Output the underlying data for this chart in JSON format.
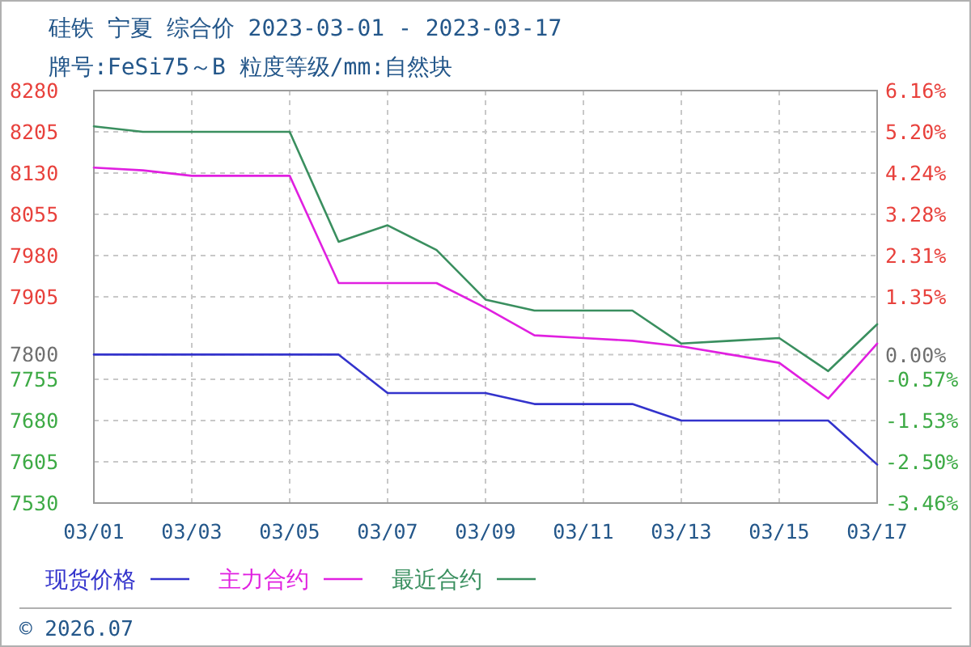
{
  "chart_data": {
    "type": "line",
    "title": "硅铁 宁夏 综合价 2023-03-01 - 2023-03-17",
    "subtitle": "牌号:FeSi75～B 粒度等级/mm:自然块",
    "x": [
      "2023-03-01",
      "2023-03-02",
      "2023-03-03",
      "2023-03-04",
      "2023-03-05",
      "2023-03-06",
      "2023-03-07",
      "2023-03-08",
      "2023-03-09",
      "2023-03-10",
      "2023-03-11",
      "2023-03-12",
      "2023-03-13",
      "2023-03-14",
      "2023-03-15",
      "2023-03-16",
      "2023-03-17"
    ],
    "series": [
      {
        "name": "现货价格",
        "color": "#3333cc",
        "values": [
          7800,
          7800,
          7800,
          7800,
          7800,
          7800,
          7730,
          7730,
          7730,
          7710,
          7710,
          7710,
          7680,
          7680,
          7680,
          7680,
          7600
        ]
      },
      {
        "name": "主力合约",
        "color": "#e020e0",
        "values": [
          8140,
          8135,
          8125,
          8125,
          8125,
          7930,
          7930,
          7930,
          7885,
          7835,
          7830,
          7825,
          7815,
          7800,
          7785,
          7720,
          7820
        ]
      },
      {
        "name": "最近合约",
        "color": "#3a8f5f",
        "values": [
          8215,
          8205,
          8205,
          8205,
          8205,
          8005,
          8035,
          7990,
          7900,
          7880,
          7880,
          7880,
          7820,
          7825,
          7830,
          7770,
          7855
        ]
      }
    ],
    "xlim": [
      "2023-03-01",
      "2023-03-17"
    ],
    "xticks": [
      {
        "value": "2023-03-01",
        "label": "03/01"
      },
      {
        "value": "2023-03-03",
        "label": "03/03"
      },
      {
        "value": "2023-03-05",
        "label": "03/05"
      },
      {
        "value": "2023-03-07",
        "label": "03/07"
      },
      {
        "value": "2023-03-09",
        "label": "03/09"
      },
      {
        "value": "2023-03-11",
        "label": "03/11"
      },
      {
        "value": "2023-03-13",
        "label": "03/13"
      },
      {
        "value": "2023-03-15",
        "label": "03/15"
      },
      {
        "value": "2023-03-17",
        "label": "03/17"
      }
    ],
    "ylim": [
      7530,
      8280
    ],
    "yticks": [
      8280,
      8205,
      8130,
      8055,
      7980,
      7905,
      7800,
      7755,
      7680,
      7605,
      7530
    ],
    "y2lim": [
      -3.46,
      6.16
    ],
    "y2ticks": [
      {
        "value": 6.16,
        "label": "6.16%"
      },
      {
        "value": 5.2,
        "label": "5.20%"
      },
      {
        "value": 4.24,
        "label": "4.24%"
      },
      {
        "value": 3.28,
        "label": "3.28%"
      },
      {
        "value": 2.31,
        "label": "2.31%"
      },
      {
        "value": 1.35,
        "label": "1.35%"
      },
      {
        "value": 0.0,
        "label": "0.00%"
      },
      {
        "value": -0.57,
        "label": "-0.57%"
      },
      {
        "value": -1.53,
        "label": "-1.53%"
      },
      {
        "value": -2.5,
        "label": "-2.50%"
      },
      {
        "value": -3.46,
        "label": "-3.46%"
      }
    ],
    "grid": true,
    "legend": "bottom",
    "annotations": [
      "© 2026.07"
    ]
  }
}
